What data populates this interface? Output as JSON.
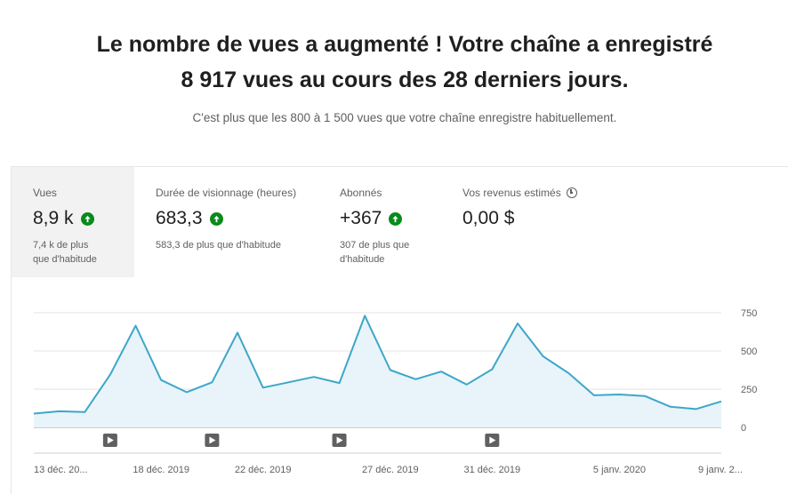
{
  "headline": {
    "line1": "Le nombre de vues a augmenté ! Votre chaîne a enregistré",
    "line2": "8 917 vues au cours des 28 derniers jours."
  },
  "subline": "C'est plus que les 800 à 1 500 vues que votre chaîne enregistre habituellement.",
  "metrics": [
    {
      "label": "Vues",
      "value": "8,9 k",
      "trend": "up",
      "sub1": "7,4 k de plus",
      "sub2": "que d'habitude",
      "active": true
    },
    {
      "label": "Durée de visionnage (heures)",
      "value": "683,3",
      "trend": "up",
      "sub1": "583,3 de plus que d'habitude",
      "sub2": ""
    },
    {
      "label": "Abonnés",
      "value": "+367",
      "trend": "up",
      "sub1": "307 de plus que",
      "sub2": "d'habitude"
    },
    {
      "label": "Vos revenus estimés",
      "value": "0,00 $",
      "icon": "clock-icon"
    }
  ],
  "colors": {
    "line": "#3ea6c9",
    "area": "#e8f4f9",
    "trend_up": "#0a8a1c"
  },
  "chart_data": {
    "type": "area",
    "x_tick_labels": [
      "13 déc. 20...",
      "18 déc. 2019",
      "22 déc. 2019",
      "27 déc. 2019",
      "31 déc. 2019",
      "5 janv. 2020",
      "9 janv. 2..."
    ],
    "x_tick_days": [
      0,
      5,
      9,
      14,
      18,
      23,
      27
    ],
    "y_ticks": [
      0,
      250,
      500,
      750
    ],
    "ylim": [
      0,
      750
    ],
    "values": [
      90,
      105,
      100,
      345,
      665,
      310,
      230,
      295,
      620,
      260,
      295,
      330,
      290,
      730,
      375,
      315,
      365,
      280,
      380,
      680,
      465,
      355,
      210,
      215,
      205,
      135,
      120,
      170
    ],
    "video_marker_days": [
      3,
      7,
      12,
      18
    ],
    "grid": true
  }
}
